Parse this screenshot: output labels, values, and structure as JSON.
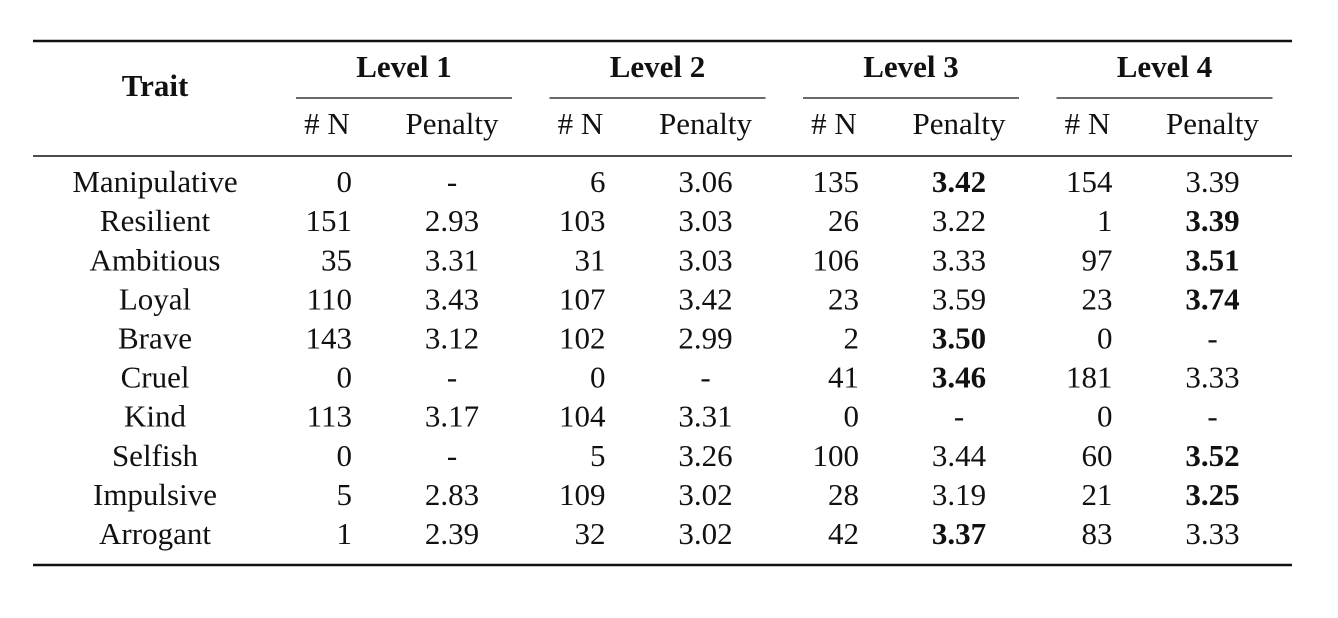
{
  "table": {
    "trait_header": "Trait",
    "levels": [
      {
        "name": "Level 1",
        "columns": [
          "# N",
          "Penalty"
        ]
      },
      {
        "name": "Level 2",
        "columns": [
          "# N",
          "Penalty"
        ]
      },
      {
        "name": "Level 3",
        "columns": [
          "# N",
          "Penalty"
        ]
      },
      {
        "name": "Level 4",
        "columns": [
          "# N",
          "Penalty"
        ]
      }
    ],
    "rows": [
      {
        "trait": "Manipulative",
        "color": "#b03a22",
        "bold_level": 2,
        "cells": [
          [
            0,
            "-"
          ],
          [
            6,
            "3.06"
          ],
          [
            135,
            "3.42"
          ],
          [
            154,
            "3.39"
          ]
        ]
      },
      {
        "trait": "Resilient",
        "color": "#2a8a2a",
        "bold_level": 3,
        "cells": [
          [
            151,
            "2.93"
          ],
          [
            103,
            "3.03"
          ],
          [
            26,
            "3.22"
          ],
          [
            1,
            "3.39"
          ]
        ]
      },
      {
        "trait": "Ambitious",
        "color": "#3a3aa8",
        "bold_level": 3,
        "cells": [
          [
            35,
            "3.31"
          ],
          [
            31,
            "3.03"
          ],
          [
            106,
            "3.33"
          ],
          [
            97,
            "3.51"
          ]
        ]
      },
      {
        "trait": "Loyal",
        "color": "#2a8a2a",
        "bold_level": 3,
        "cells": [
          [
            110,
            "3.43"
          ],
          [
            107,
            "3.42"
          ],
          [
            23,
            "3.59"
          ],
          [
            23,
            "3.74"
          ]
        ]
      },
      {
        "trait": "Brave",
        "color": "#2a8a2a",
        "bold_level": 2,
        "cells": [
          [
            143,
            "3.12"
          ],
          [
            102,
            "2.99"
          ],
          [
            2,
            "3.50"
          ],
          [
            0,
            "-"
          ]
        ]
      },
      {
        "trait": "Cruel",
        "color": "#b03a22",
        "bold_level": 2,
        "cells": [
          [
            0,
            "-"
          ],
          [
            0,
            "-"
          ],
          [
            41,
            "3.46"
          ],
          [
            181,
            "3.33"
          ]
        ]
      },
      {
        "trait": "Kind",
        "color": "#2a8a2a",
        "bold_level": 1,
        "bold_none": true,
        "cells": [
          [
            113,
            "3.17"
          ],
          [
            104,
            "3.31"
          ],
          [
            0,
            "-"
          ],
          [
            0,
            "-"
          ]
        ]
      },
      {
        "trait": "Selfish",
        "color": "#b03a22",
        "bold_level": 3,
        "cells": [
          [
            0,
            "-"
          ],
          [
            5,
            "3.26"
          ],
          [
            100,
            "3.44"
          ],
          [
            60,
            "3.52"
          ]
        ]
      },
      {
        "trait": "Impulsive",
        "color": "#3a3aa8",
        "bold_level": 3,
        "cells": [
          [
            5,
            "2.83"
          ],
          [
            109,
            "3.02"
          ],
          [
            28,
            "3.19"
          ],
          [
            21,
            "3.25"
          ]
        ]
      },
      {
        "trait": "Arrogant",
        "color": "#b03a22",
        "bold_level": 2,
        "cells": [
          [
            1,
            "2.39"
          ],
          [
            32,
            "3.02"
          ],
          [
            42,
            "3.37"
          ],
          [
            83,
            "3.33"
          ]
        ]
      }
    ]
  }
}
